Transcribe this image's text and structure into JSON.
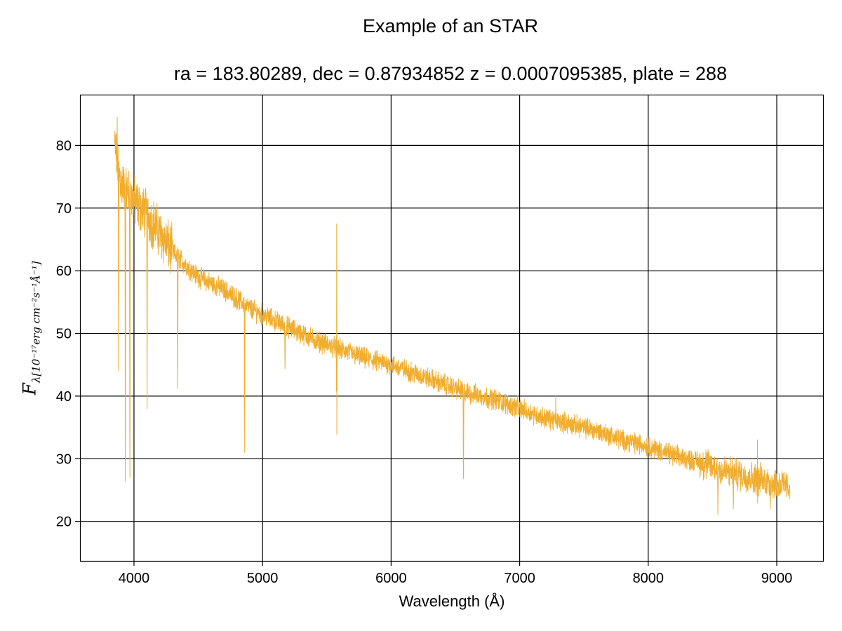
{
  "chart_data": {
    "type": "line",
    "title": "Example of an STAR",
    "subtitle": "ra = 183.80289, dec = 0.87934852 z = 0.0007095385, plate = 288",
    "xlabel": "Wavelength (Å)",
    "ylabel_main": "F",
    "ylabel_sub": "λ[10⁻¹⁷erg cm⁻²s⁻¹Å⁻¹]",
    "xlim": [
      3580,
      9360
    ],
    "ylim": [
      13.7,
      88.1
    ],
    "xticks": [
      4000,
      5000,
      6000,
      7000,
      8000,
      9000
    ],
    "yticks": [
      20,
      30,
      40,
      50,
      60,
      70,
      80
    ],
    "grid": true,
    "line_color": "#f0ad2e",
    "series": [
      {
        "x_range": [
          3850,
          9100
        ],
        "continuum": [
          [
            3850,
            80
          ],
          [
            3900,
            74
          ],
          [
            4000,
            71
          ],
          [
            4100,
            69
          ],
          [
            4200,
            66
          ],
          [
            4300,
            63
          ],
          [
            4400,
            61
          ],
          [
            4500,
            59
          ],
          [
            4600,
            58
          ],
          [
            4700,
            57
          ],
          [
            4800,
            55.5
          ],
          [
            4900,
            54
          ],
          [
            5000,
            53
          ],
          [
            5100,
            52
          ],
          [
            5200,
            51
          ],
          [
            5400,
            49
          ],
          [
            5600,
            47.5
          ],
          [
            5800,
            46
          ],
          [
            6000,
            45
          ],
          [
            6200,
            43.5
          ],
          [
            6400,
            42
          ],
          [
            6600,
            40.5
          ],
          [
            6800,
            39.5
          ],
          [
            7000,
            38
          ],
          [
            7200,
            36.5
          ],
          [
            7400,
            35.5
          ],
          [
            7600,
            34.5
          ],
          [
            7800,
            33
          ],
          [
            8000,
            32
          ],
          [
            8200,
            30.5
          ],
          [
            8400,
            29.5
          ],
          [
            8600,
            28
          ],
          [
            8800,
            27
          ],
          [
            9000,
            26
          ],
          [
            9100,
            25.5
          ]
        ],
        "absorption_lines": [
          [
            3880,
            44
          ],
          [
            3933,
            17
          ],
          [
            3968,
            18
          ],
          [
            4102,
            38
          ],
          [
            4340,
            37
          ],
          [
            4861,
            31
          ],
          [
            5175,
            43
          ],
          [
            5577,
            27
          ],
          [
            6563,
            24
          ],
          [
            8542,
            21
          ],
          [
            8662,
            22
          ],
          [
            8850,
            21
          ],
          [
            8950,
            22
          ]
        ],
        "emission_spikes": [
          [
            3870,
            84.5
          ],
          [
            5577,
            67.5
          ],
          [
            7280,
            40
          ],
          [
            8850,
            33
          ]
        ]
      }
    ]
  }
}
